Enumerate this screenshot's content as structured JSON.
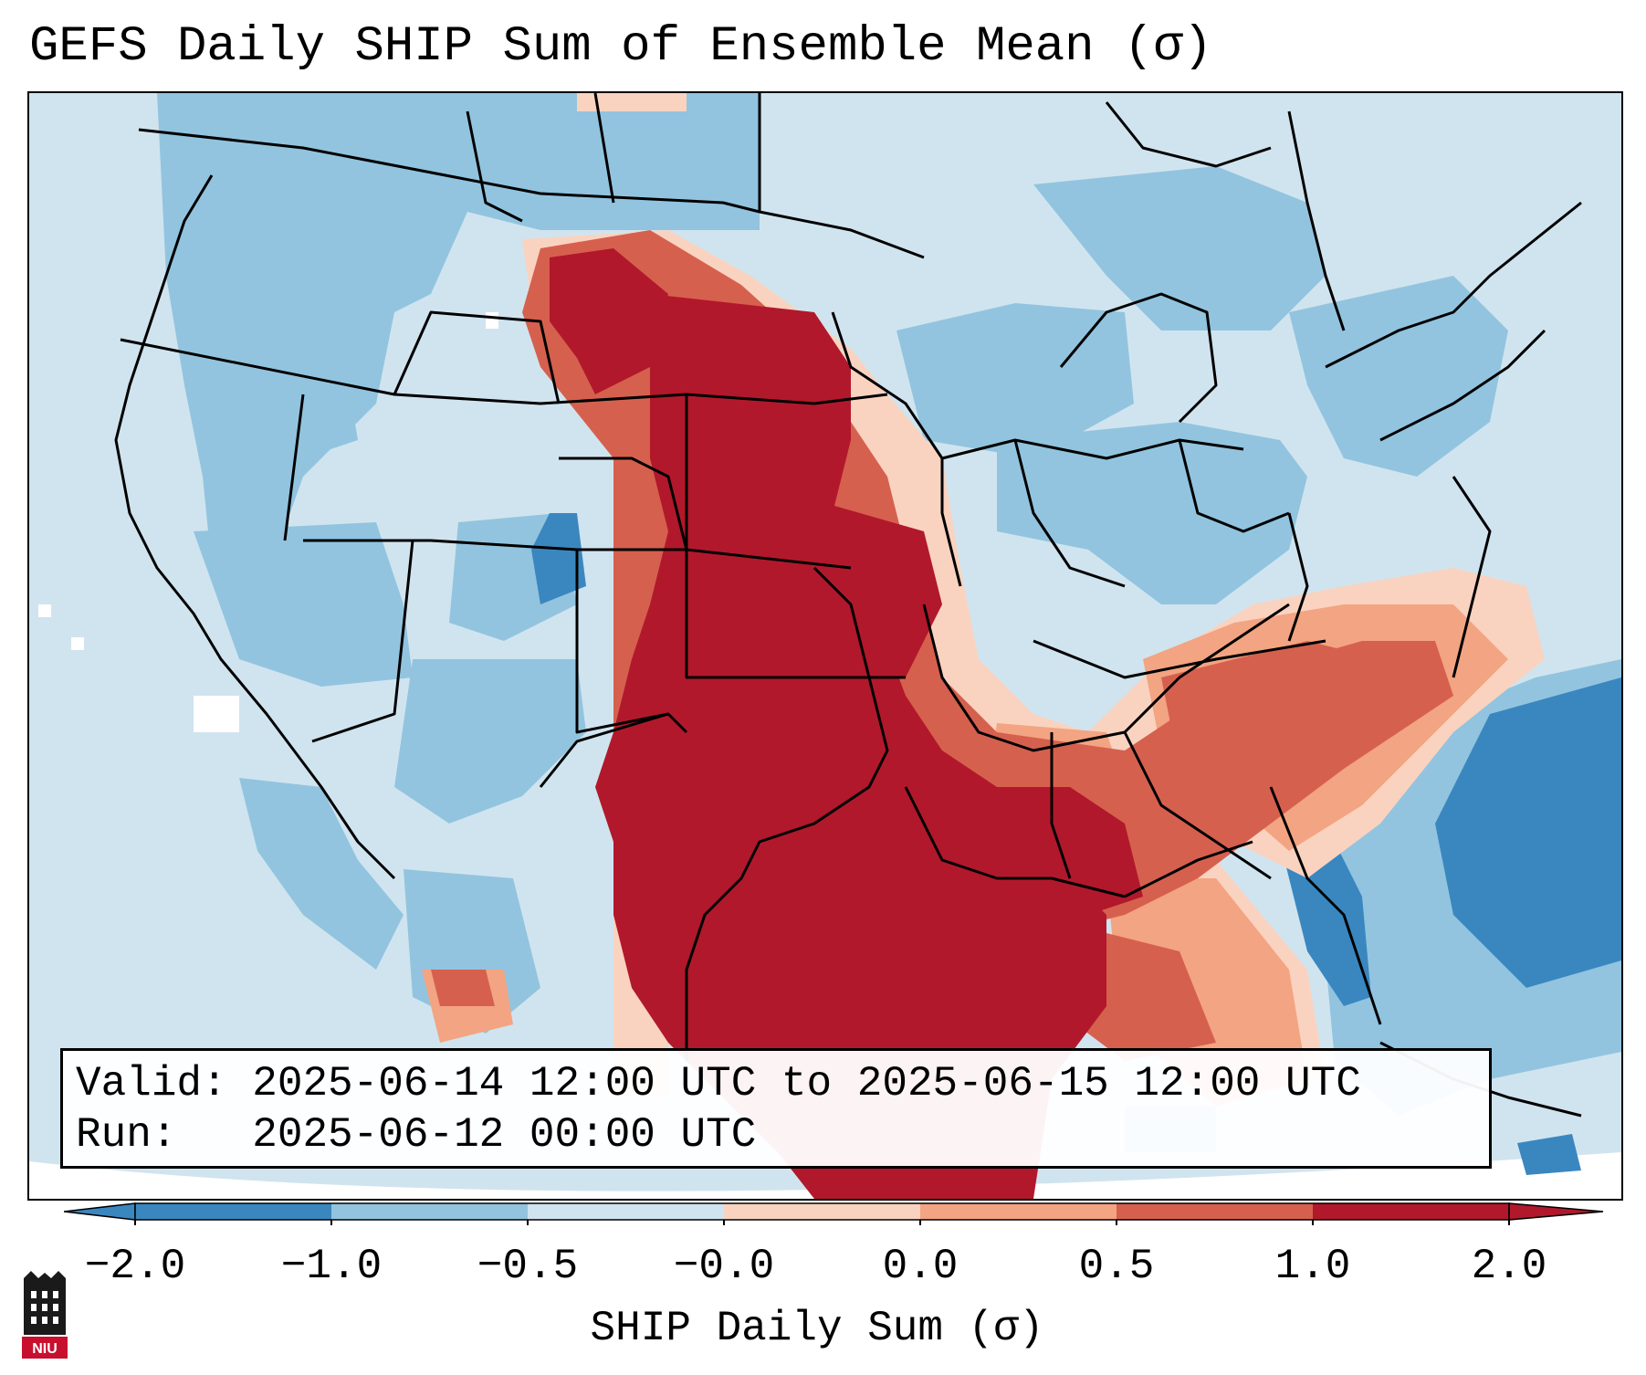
{
  "title": "GEFS Daily SHIP Sum of Ensemble Mean (σ)",
  "info": {
    "valid": "Valid: 2025-06-14 12:00 UTC to 2025-06-15 12:00 UTC",
    "run": "Run:   2025-06-12 00:00 UTC"
  },
  "colorbar": {
    "label": "SHIP Daily Sum (σ)",
    "ticks": [
      "−2.0",
      "−1.0",
      "−0.5",
      "−0.0",
      "0.0",
      "0.5",
      "1.0",
      "2.0"
    ],
    "colors": [
      "#3a87c0",
      "#92c4df",
      "#d0e4ef",
      "#f7f7f7",
      "#f9d3c0",
      "#f3a482",
      "#d6604e",
      "#b2182b"
    ]
  },
  "logo": {
    "text": "NIU"
  }
}
